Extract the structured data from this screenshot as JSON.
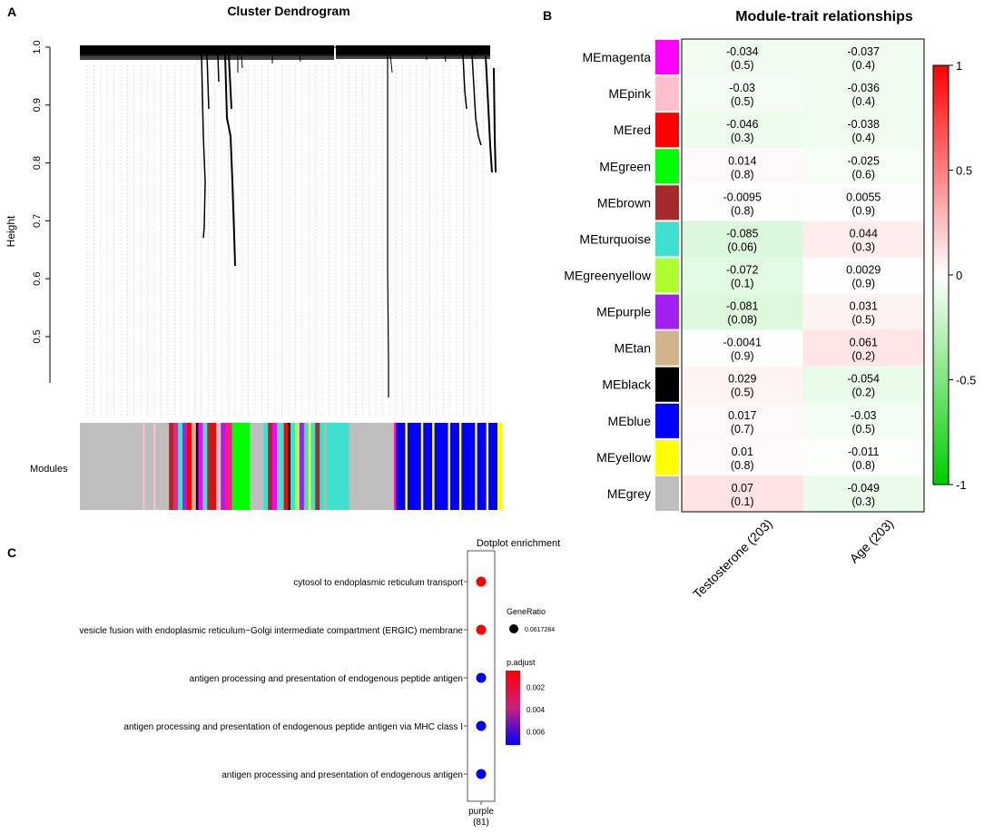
{
  "panels": {
    "a": {
      "letter": "A",
      "title": "Cluster Dendrogram",
      "ylabel": "Height",
      "modules_label": "Modules"
    },
    "b": {
      "letter": "B",
      "title": "Module-trait relationships"
    },
    "c": {
      "letter": "C",
      "title": "Dotplot enrichment",
      "legend_size_title": "GeneRatio",
      "legend_size_value": "0.0617284",
      "legend_color_title": "p.adjust"
    }
  },
  "colors": {
    "positive": "#ff0000",
    "negative": "#00cc00",
    "zero": "#ffffff",
    "p_high": "#ff0000",
    "p_low": "#0000ff"
  },
  "chart_data": [
    {
      "type": "dendrogram",
      "title": "Cluster Dendrogram",
      "ylabel": "Height",
      "ylim": [
        0.42,
        1.0
      ],
      "yticks": [
        0.5,
        0.6,
        0.7,
        0.8,
        0.9,
        1.0
      ],
      "ytick_labels": [
        "0.5",
        "0.6",
        "0.7",
        "0.8",
        "0.9",
        "1.0"
      ],
      "module_bar_label": "Modules",
      "module_segments": [
        {
          "color": "#bebebe",
          "weight": 14
        },
        {
          "color": "#ffc0cb",
          "weight": 0.4
        },
        {
          "color": "#bebebe",
          "weight": 2
        },
        {
          "color": "#ffc0cb",
          "weight": 0.4
        },
        {
          "color": "#bebebe",
          "weight": 3
        },
        {
          "color": "#a52a2a",
          "weight": 1
        },
        {
          "color": "#ff1493",
          "weight": 1
        },
        {
          "color": "#40e0d0",
          "weight": 1
        },
        {
          "color": "#a020f0",
          "weight": 1
        },
        {
          "color": "#ff0000",
          "weight": 1
        },
        {
          "color": "#d2b48c",
          "weight": 1
        },
        {
          "color": "#000000",
          "weight": 0.5
        },
        {
          "color": "#ff00ff",
          "weight": 1
        },
        {
          "color": "#40e0d0",
          "weight": 1
        },
        {
          "color": "#a52a2a",
          "weight": 1
        },
        {
          "color": "#ff0000",
          "weight": 1
        },
        {
          "color": "#ffc0cb",
          "weight": 1
        },
        {
          "color": "#a020f0",
          "weight": 1
        },
        {
          "color": "#ff1493",
          "weight": 1.5
        },
        {
          "color": "#00ff00",
          "weight": 4
        },
        {
          "color": "#bebebe",
          "weight": 3
        },
        {
          "color": "#40e0d0",
          "weight": 1
        },
        {
          "color": "#a52a2a",
          "weight": 1
        },
        {
          "color": "#ff00ff",
          "weight": 1
        },
        {
          "color": "#40e0d0",
          "weight": 1.5
        },
        {
          "color": "#ff0000",
          "weight": 1
        },
        {
          "color": "#000000",
          "weight": 0.5
        },
        {
          "color": "#40e0d0",
          "weight": 1
        },
        {
          "color": "#adff2f",
          "weight": 1
        },
        {
          "color": "#a020f0",
          "weight": 1
        },
        {
          "color": "#40e0d0",
          "weight": 1
        },
        {
          "color": "#ffff00",
          "weight": 0.5
        },
        {
          "color": "#40e0d0",
          "weight": 1
        },
        {
          "color": "#a52a2a",
          "weight": 1
        },
        {
          "color": "#40e0d0",
          "weight": 1
        },
        {
          "color": "#d2b48c",
          "weight": 0.5
        },
        {
          "color": "#40e0d0",
          "weight": 5
        },
        {
          "color": "#bebebe",
          "weight": 10
        },
        {
          "color": "#ff1493",
          "weight": 0.5
        },
        {
          "color": "#0000ff",
          "weight": 2
        },
        {
          "color": "#ffff00",
          "weight": 0.5
        },
        {
          "color": "#0000ff",
          "weight": 3
        },
        {
          "color": "#ffff00",
          "weight": 0.5
        },
        {
          "color": "#0000ff",
          "weight": 2
        },
        {
          "color": "#ffff00",
          "weight": 0.5
        },
        {
          "color": "#0000ff",
          "weight": 3
        },
        {
          "color": "#ffff00",
          "weight": 0.5
        },
        {
          "color": "#0000ff",
          "weight": 2
        },
        {
          "color": "#ffff00",
          "weight": 0.5
        },
        {
          "color": "#0000ff",
          "weight": 3
        },
        {
          "color": "#ffff00",
          "weight": 0.5
        },
        {
          "color": "#0000ff",
          "weight": 2
        },
        {
          "color": "#ffff00",
          "weight": 0.5
        },
        {
          "color": "#0000ff",
          "weight": 2
        },
        {
          "color": "#ffff00",
          "weight": 1
        }
      ]
    },
    {
      "type": "heatmap",
      "title": "Module-trait relationships",
      "rows": [
        "MEmagenta",
        "MEpink",
        "MEred",
        "MEgreen",
        "MEbrown",
        "MEturquoise",
        "MEgreenyellow",
        "MEpurple",
        "MEtan",
        "MEblack",
        "MEblue",
        "MEyellow",
        "MEgrey"
      ],
      "row_colors": [
        "#ff00ff",
        "#ffc0cb",
        "#ff0000",
        "#00ff00",
        "#a52a2a",
        "#40e0d0",
        "#adff2f",
        "#a020f0",
        "#d2b48c",
        "#000000",
        "#0000ff",
        "#ffff00",
        "#bebebe"
      ],
      "columns": [
        "Testosterone (203)",
        "Age (203)"
      ],
      "values": [
        [
          -0.034,
          -0.037
        ],
        [
          -0.03,
          -0.036
        ],
        [
          -0.046,
          -0.038
        ],
        [
          0.014,
          -0.025
        ],
        [
          -0.0095,
          0.0055
        ],
        [
          -0.085,
          0.044
        ],
        [
          -0.072,
          0.0029
        ],
        [
          -0.081,
          0.031
        ],
        [
          -0.0041,
          0.061
        ],
        [
          0.029,
          -0.054
        ],
        [
          0.017,
          -0.03
        ],
        [
          0.01,
          -0.011
        ],
        [
          0.07,
          -0.049
        ]
      ],
      "value_labels": [
        [
          "-0.034",
          "-0.037"
        ],
        [
          "-0.03",
          "-0.036"
        ],
        [
          "-0.046",
          "-0.038"
        ],
        [
          "0.014",
          "-0.025"
        ],
        [
          "-0.0095",
          "0.0055"
        ],
        [
          "-0.085",
          "0.044"
        ],
        [
          "-0.072",
          "0.0029"
        ],
        [
          "-0.081",
          "0.031"
        ],
        [
          "-0.0041",
          "0.061"
        ],
        [
          "0.029",
          "-0.054"
        ],
        [
          "0.017",
          "-0.03"
        ],
        [
          "0.01",
          "-0.011"
        ],
        [
          "0.07",
          "-0.049"
        ]
      ],
      "pvalue_labels": [
        [
          "(0.5)",
          "(0.4)"
        ],
        [
          "(0.5)",
          "(0.4)"
        ],
        [
          "(0.3)",
          "(0.4)"
        ],
        [
          "(0.8)",
          "(0.6)"
        ],
        [
          "(0.8)",
          "(0.9)"
        ],
        [
          "(0.06)",
          "(0.3)"
        ],
        [
          "(0.1)",
          "(0.9)"
        ],
        [
          "(0.08)",
          "(0.5)"
        ],
        [
          "(0.9)",
          "(0.2)"
        ],
        [
          "(0.5)",
          "(0.2)"
        ],
        [
          "(0.7)",
          "(0.5)"
        ],
        [
          "(0.8)",
          "(0.8)"
        ],
        [
          "(0.1)",
          "(0.3)"
        ]
      ],
      "scale_range": [
        -1,
        1
      ],
      "scale_ticks": [
        1,
        0.5,
        0,
        -0.5,
        -1
      ],
      "scale_tick_labels": [
        "1",
        "0.5",
        "0",
        "-0.5",
        "-1"
      ]
    },
    {
      "type": "scatter",
      "title": "Dotplot enrichment",
      "x_categories": [
        "purple"
      ],
      "x_category_counts": [
        "(81)"
      ],
      "terms": [
        "cytosol to endoplasmic reticulum transport",
        "vesicle fusion with endoplasmic reticulum−Golgi intermediate compartment (ERGIC) membrane",
        "antigen processing and presentation of endogenous peptide antigen",
        "antigen processing and presentation of endogenous peptide antigen via MHC class I",
        "antigen processing and presentation of endogenous antigen"
      ],
      "gene_ratio": [
        0.0617284,
        0.0617284,
        0.0617284,
        0.0617284,
        0.0617284
      ],
      "p_adjust": [
        0.0005,
        0.0005,
        0.0072,
        0.0072,
        0.0072
      ],
      "size_legend_title": "GeneRatio",
      "size_legend_label": "0.0617284",
      "color_legend_title": "p.adjust",
      "color_legend_range": [
        0.0005,
        0.0072
      ],
      "color_legend_ticks": [
        0.002,
        0.004,
        0.006
      ],
      "color_legend_tick_labels": [
        "0.002",
        "0.004",
        "0.006"
      ]
    }
  ]
}
